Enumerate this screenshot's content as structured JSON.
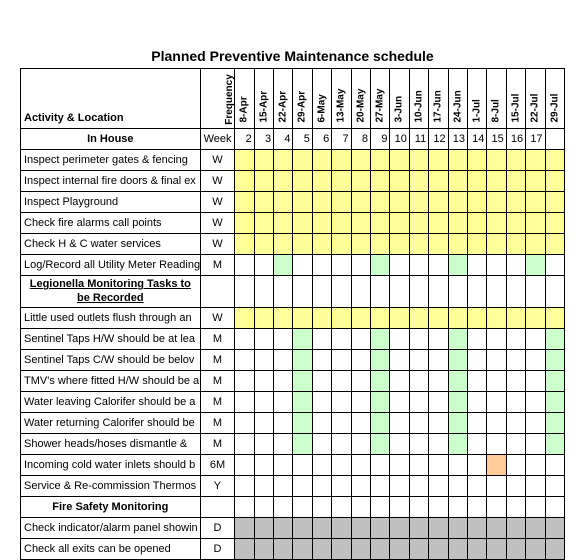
{
  "title": "Planned Preventive Maintenance schedule",
  "headers": {
    "activity": "Activity & Location",
    "frequency": "Frequency",
    "week": "Week"
  },
  "dates": [
    "8-Apr",
    "15-Apr",
    "22-Apr",
    "29-Apr",
    "6-May",
    "13-May",
    "20-May",
    "27-May",
    "3-Jun",
    "10-Jun",
    "17-Jun",
    "24-Jun",
    "1-Jul",
    "8-Jul",
    "15-Jul",
    "22-Jul",
    "29-Jul"
  ],
  "weekNums": [
    "2",
    "3",
    "4",
    "5",
    "6",
    "7",
    "8",
    "9",
    "10",
    "11",
    "12",
    "13",
    "14",
    "15",
    "16",
    "17",
    ""
  ],
  "sections": {
    "inHouse": "In House",
    "legionella": "Legionella Monitoring Tasks to be Recorded",
    "fire": "Fire Safety Monitoring"
  },
  "rows": [
    {
      "a": "Inspect perimeter gates & fencing",
      "f": "W",
      "c": [
        "y",
        "y",
        "y",
        "y",
        "y",
        "y",
        "y",
        "y",
        "y",
        "y",
        "y",
        "y",
        "y",
        "y",
        "y",
        "y",
        "y"
      ]
    },
    {
      "a": "Inspect internal fire doors & final ex",
      "f": "W",
      "c": [
        "y",
        "y",
        "y",
        "y",
        "y",
        "y",
        "y",
        "y",
        "y",
        "y",
        "y",
        "y",
        "y",
        "y",
        "y",
        "y",
        "y"
      ]
    },
    {
      "a": "Inspect Playground",
      "f": "W",
      "c": [
        "y",
        "y",
        "y",
        "y",
        "y",
        "y",
        "y",
        "y",
        "y",
        "y",
        "y",
        "y",
        "y",
        "y",
        "y",
        "y",
        "y"
      ]
    },
    {
      "a": "Check fire alarms call points",
      "f": "W",
      "c": [
        "y",
        "y",
        "y",
        "y",
        "y",
        "y",
        "y",
        "y",
        "y",
        "y",
        "y",
        "y",
        "y",
        "y",
        "y",
        "y",
        "y"
      ]
    },
    {
      "a": "Check H & C water services",
      "f": "W",
      "c": [
        "y",
        "y",
        "y",
        "y",
        "y",
        "y",
        "y",
        "y",
        "y",
        "y",
        "y",
        "y",
        "y",
        "y",
        "y",
        "y",
        "y"
      ]
    },
    {
      "a": "Log/Record all Utility Meter Reading",
      "f": "M",
      "c": [
        "",
        "",
        "g",
        "",
        "",
        "",
        "",
        "g",
        "",
        "",
        "",
        "g",
        "",
        "",
        "",
        "g",
        ""
      ]
    },
    {
      "a": "Little used outlets flush through an",
      "f": "W",
      "c": [
        "y",
        "y",
        "y",
        "y",
        "y",
        "y",
        "y",
        "y",
        "y",
        "y",
        "y",
        "y",
        "y",
        "y",
        "y",
        "y",
        "y"
      ]
    },
    {
      "a": "Sentinel Taps H/W should be at lea",
      "f": "M",
      "c": [
        "",
        "",
        "",
        "g",
        "",
        "",
        "",
        "g",
        "",
        "",
        "",
        "g",
        "",
        "",
        "",
        "",
        "g"
      ]
    },
    {
      "a": "Sentinel Taps C/W should be belov",
      "f": "M",
      "c": [
        "",
        "",
        "",
        "g",
        "",
        "",
        "",
        "g",
        "",
        "",
        "",
        "g",
        "",
        "",
        "",
        "",
        "g"
      ]
    },
    {
      "a": "TMV's where fitted H/W should be a",
      "f": "M",
      "c": [
        "",
        "",
        "",
        "g",
        "",
        "",
        "",
        "g",
        "",
        "",
        "",
        "g",
        "",
        "",
        "",
        "",
        "g"
      ]
    },
    {
      "a": "Water leaving Calorifer should be a",
      "f": "M",
      "c": [
        "",
        "",
        "",
        "g",
        "",
        "",
        "",
        "g",
        "",
        "",
        "",
        "g",
        "",
        "",
        "",
        "",
        "g"
      ]
    },
    {
      "a": "Water returning Calorifer should be",
      "f": "M",
      "c": [
        "",
        "",
        "",
        "g",
        "",
        "",
        "",
        "g",
        "",
        "",
        "",
        "g",
        "",
        "",
        "",
        "",
        "g"
      ]
    },
    {
      "a": "Shower heads/hoses dismantle &",
      "f": "M",
      "c": [
        "",
        "",
        "",
        "g",
        "",
        "",
        "",
        "g",
        "",
        "",
        "",
        "g",
        "",
        "",
        "",
        "",
        "g"
      ]
    },
    {
      "a": "Incoming cold water inlets should b",
      "f": "6M",
      "c": [
        "",
        "",
        "",
        "",
        "",
        "",
        "",
        "",
        "",
        "",
        "",
        "",
        "",
        "o",
        "",
        "",
        ""
      ]
    },
    {
      "a": "Service & Re-commission Thermos",
      "f": "Y",
      "c": [
        "",
        "",
        "",
        "",
        "",
        "",
        "",
        "",
        "",
        "",
        "",
        "",
        "",
        "",
        "",
        "",
        ""
      ]
    },
    {
      "a": "Check indicator/alarm panel showin",
      "f": "D",
      "c": [
        "gr",
        "gr",
        "gr",
        "gr",
        "gr",
        "gr",
        "gr",
        "gr",
        "gr",
        "gr",
        "gr",
        "gr",
        "gr",
        "gr",
        "gr",
        "gr",
        "gr"
      ]
    },
    {
      "a": "Check all exits can be opened",
      "f": "D",
      "c": [
        "gr",
        "gr",
        "gr",
        "gr",
        "gr",
        "gr",
        "gr",
        "gr",
        "gr",
        "gr",
        "gr",
        "gr",
        "gr",
        "gr",
        "gr",
        "gr",
        "gr"
      ]
    }
  ],
  "colors": {
    "yellow": "#ffff99",
    "green": "#ccffcc",
    "orange": "#ffcc99",
    "gray": "#c0c0c0"
  },
  "font": {
    "family": "Arial",
    "body_pt": 11,
    "title_pt": 14
  }
}
